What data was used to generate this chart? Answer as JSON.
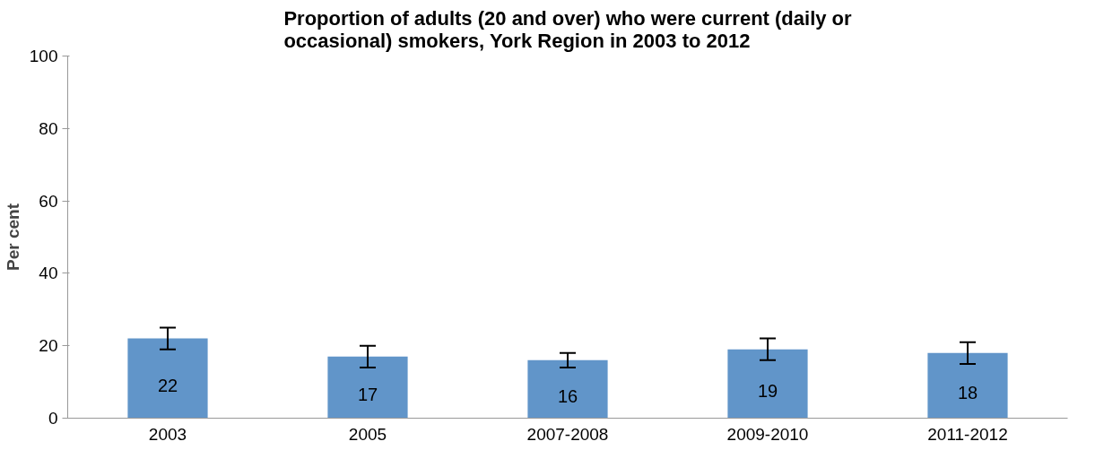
{
  "chart_data": {
    "type": "bar",
    "title": "Proportion of adults (20 and over) who were current (daily or\noccasional) smokers, York Region in 2003 to 2012",
    "ylabel": "Per cent",
    "categories": [
      "2003",
      "2005",
      "2007-2008",
      "2009-2010",
      "2011-2012"
    ],
    "values": [
      22,
      17,
      16,
      19,
      18
    ],
    "errors": [
      [
        19,
        25
      ],
      [
        14,
        20
      ],
      [
        14,
        18
      ],
      [
        16,
        22
      ],
      [
        15,
        21
      ]
    ],
    "color": "#6195c9",
    "ylim": [
      0,
      100
    ],
    "yticks": [
      0,
      20,
      40,
      60,
      80,
      100
    ],
    "grid": false,
    "data_labels": true
  }
}
